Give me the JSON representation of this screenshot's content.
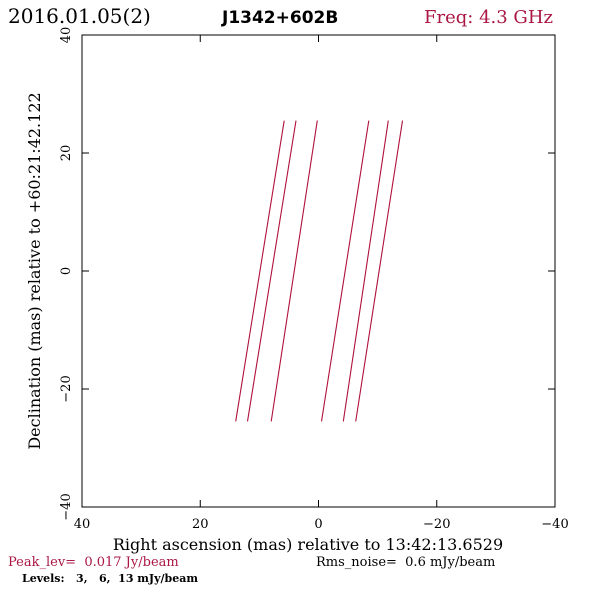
{
  "header": {
    "date": "2016.01.05(2)",
    "source": "J1342+602B",
    "freq": "Freq: 4.3 GHz"
  },
  "footer": {
    "peak": "Peak_lev=  0.017 Jy/beam",
    "rms": "Rms_noise=  0.6 mJy/beam",
    "levels": "Levels:   3,   6,  13 mJy/beam"
  },
  "colors": {
    "accent": "#aa1744",
    "contour": "#b0103a",
    "axis": "#000000"
  },
  "chart_data": {
    "type": "contour",
    "xlabel": "Right ascension (mas) relative to 13:42:13.6529",
    "ylabel": "Declination (mas) relative to +60:21:42.122",
    "xlim": [
      40,
      -40
    ],
    "ylim": [
      -40,
      40
    ],
    "xticks": [
      40,
      20,
      0,
      -20,
      -40
    ],
    "yticks": [
      -40,
      -20,
      0,
      20,
      40
    ],
    "xtick_labels": [
      "40",
      "20",
      "0",
      "−20",
      "−40"
    ],
    "ytick_labels": [
      "−40",
      "−20",
      "0",
      "20",
      "40"
    ],
    "grid": false,
    "levels_mJy": [
      3,
      6,
      13
    ],
    "contours": [
      {
        "name": "",
        "x": [
          14.0,
          5.8
        ],
        "y": [
          -25.5,
          25.5
        ]
      },
      {
        "name": "",
        "x": [
          12.0,
          3.8
        ],
        "y": [
          -25.5,
          25.5
        ]
      },
      {
        "name": "",
        "x": [
          8.0,
          0.2
        ],
        "y": [
          -25.5,
          25.5
        ]
      },
      {
        "name": "",
        "x": [
          -0.5,
          -8.5
        ],
        "y": [
          -25.5,
          25.5
        ]
      },
      {
        "name": "",
        "x": [
          -4.2,
          -11.8
        ],
        "y": [
          -25.5,
          25.5
        ]
      },
      {
        "name": "",
        "x": [
          -6.3,
          -14.2
        ],
        "y": [
          -25.5,
          25.5
        ]
      }
    ]
  }
}
